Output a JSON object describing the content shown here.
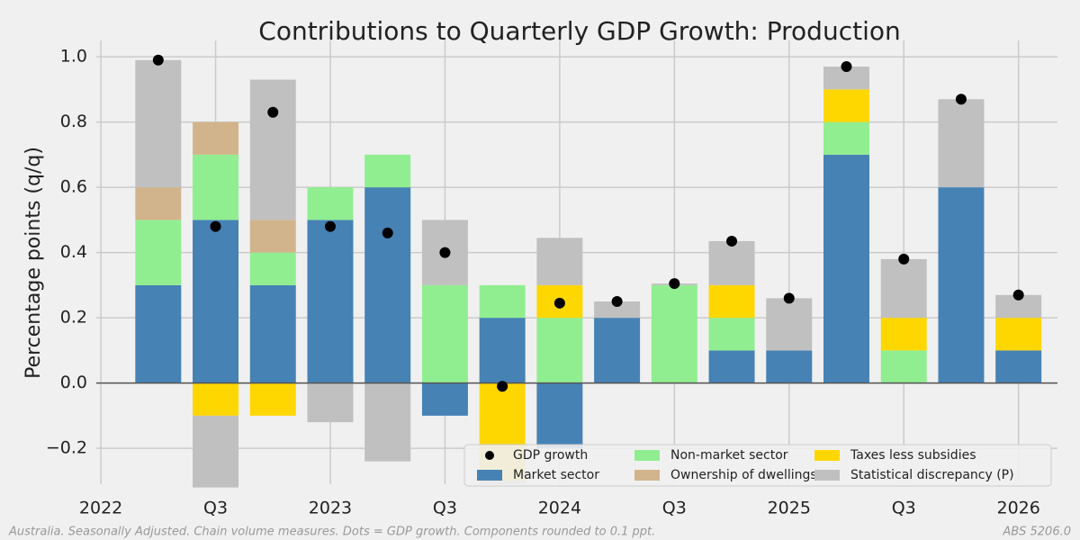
{
  "chart_data": {
    "type": "bar",
    "stacked": true,
    "title": "Contributions to Quarterly GDP Growth: Production",
    "y_label": "Percentage points (q/q)",
    "footnote": "Australia. Seasonally Adjusted. Chain volume measures. Dots = GDP growth. Components rounded to 0.1 ppt.",
    "source": "ABS 5206.0",
    "x": [
      2022.25,
      2022.5,
      2022.75,
      2023.0,
      2023.25,
      2023.5,
      2023.75,
      2024.0,
      2024.25,
      2024.5,
      2024.75,
      2025.0,
      2025.25,
      2025.5,
      2025.75,
      2026.0
    ],
    "xlim": [
      2021.98,
      2026.17
    ],
    "xticks": [
      {
        "value": 2022,
        "label": "2022"
      },
      {
        "value": 2022.5,
        "label": "Q3"
      },
      {
        "value": 2023,
        "label": "2023"
      },
      {
        "value": 2023.5,
        "label": "Q3"
      },
      {
        "value": 2024,
        "label": "2024"
      },
      {
        "value": 2024.5,
        "label": "Q3"
      },
      {
        "value": 2025,
        "label": "2025"
      },
      {
        "value": 2025.5,
        "label": "Q3"
      },
      {
        "value": 2026,
        "label": "2026"
      }
    ],
    "ylim": [
      -0.31,
      1.05
    ],
    "yticks": [
      {
        "value": -0.2,
        "label": "−0.2"
      },
      {
        "value": 0,
        "label": "0.0"
      },
      0.2,
      0.4,
      0.6,
      0.8,
      {
        "value": 1,
        "label": "1.0"
      }
    ],
    "grid": true,
    "legend": "lower right",
    "series": [
      {
        "name": "GDP growth",
        "type": "scatter",
        "color": "#000000",
        "values": [
          0.99,
          0.48,
          0.83,
          0.48,
          0.46,
          0.4,
          -0.01,
          0.245,
          0.25,
          0.305,
          0.435,
          0.26,
          0.97,
          0.38,
          0.87,
          0.27
        ]
      },
      {
        "name": "Market sector",
        "color": "#4682b4",
        "values": [
          0.3,
          0.5,
          0.3,
          0.5,
          0.6,
          -0.1,
          0.2,
          -0.2,
          0.2,
          0,
          0.1,
          0.1,
          0.7,
          0,
          0.6,
          0.1
        ]
      },
      {
        "name": "Non-market sector",
        "color": "#90ee90",
        "values": [
          0.2,
          0.2,
          0.1,
          0.1,
          0.1,
          0.3,
          0.1,
          0.2,
          0,
          0.3,
          0.1,
          0,
          0.1,
          0.1,
          0,
          0
        ]
      },
      {
        "name": "Ownership of dwellings",
        "color": "#d2b48c",
        "values": [
          0.1,
          0.1,
          0.1,
          0,
          0,
          0,
          0,
          0,
          0,
          0,
          0,
          0,
          0,
          0,
          0,
          0
        ]
      },
      {
        "name": "Taxes less subsidies",
        "color": "#ffd700",
        "values": [
          0,
          -0.1,
          -0.1,
          0,
          0,
          0,
          -0.3,
          0.1,
          0,
          0,
          0.1,
          0,
          0.1,
          0.1,
          0,
          0.1
        ]
      },
      {
        "name": "Statistical discrepancy (P)",
        "color": "#c0c0c0",
        "values": [
          0.39,
          -0.22,
          0.43,
          -0.12,
          -0.24,
          0.2,
          -0.01,
          0.145,
          0.05,
          0.005,
          0.135,
          0.16,
          0.07,
          0.18,
          0.27,
          0.07
        ]
      }
    ]
  }
}
